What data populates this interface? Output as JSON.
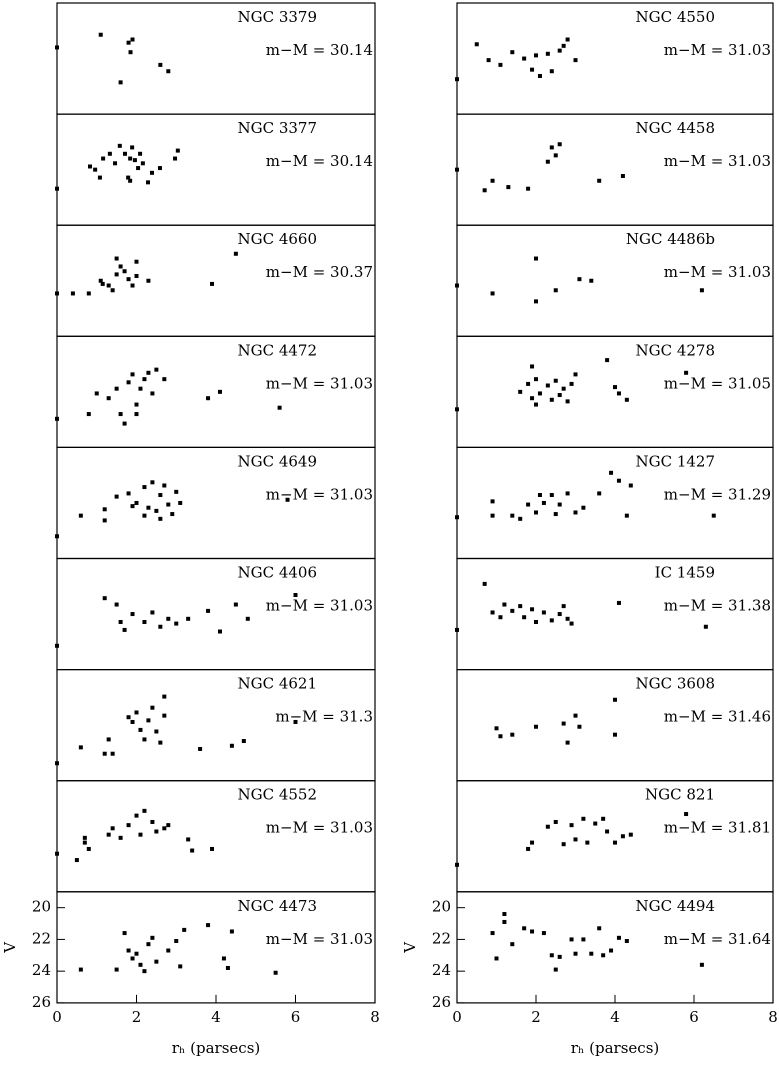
{
  "chart_data": [
    {
      "type": "scatter",
      "title": "NGC 3379",
      "annotation": "m−M = 30.14",
      "color": "#000000",
      "xlim": [
        0,
        8
      ],
      "ylim": [
        26,
        19
      ],
      "x": [
        0,
        1.1,
        1.8,
        1.85,
        1.9,
        1.6,
        2.6,
        2.8
      ],
      "y": [
        21.8,
        21.0,
        21.5,
        22.1,
        21.3,
        24.0,
        22.9,
        23.3
      ]
    },
    {
      "type": "scatter",
      "title": "NGC 3377",
      "annotation": "m−M = 30.14",
      "color": "#000000",
      "xlim": [
        0,
        8
      ],
      "ylim": [
        26,
        19
      ],
      "x": [
        0.83,
        0.96,
        1.08,
        1.16,
        1.33,
        1.46,
        1.58,
        1.71,
        1.79,
        1.84,
        1.89,
        1.96,
        2.04,
        2.09,
        2.16,
        2.29,
        2.39,
        2.59,
        2.97,
        3.04,
        0,
        1.84
      ],
      "y": [
        22.3,
        22.5,
        23.0,
        21.8,
        21.5,
        22.1,
        21.0,
        21.5,
        23.0,
        21.8,
        21.1,
        21.9,
        22.4,
        21.5,
        22.1,
        23.3,
        22.7,
        22.4,
        21.8,
        21.3,
        23.7,
        23.2
      ]
    },
    {
      "type": "scatter",
      "title": "NGC 4660",
      "annotation": "m−M = 30.37",
      "color": "#000000",
      "xlim": [
        0,
        8
      ],
      "ylim": [
        26,
        19
      ],
      "x": [
        0.4,
        0.8,
        1.1,
        1.15,
        1.3,
        1.5,
        1.5,
        1.6,
        1.7,
        1.8,
        1.9,
        2.0,
        2.3,
        2.0,
        3.9,
        4.5,
        0,
        1.4
      ],
      "y": [
        23.3,
        23.3,
        22.5,
        22.7,
        22.8,
        22.1,
        21.1,
        21.6,
        21.9,
        22.4,
        22.8,
        22.2,
        22.5,
        21.3,
        22.7,
        20.8,
        23.3,
        23.1
      ]
    },
    {
      "type": "scatter",
      "title": "NGC 4472",
      "annotation": "m−M = 31.03",
      "color": "#000000",
      "xlim": [
        0,
        8
      ],
      "ylim": [
        26,
        19
      ],
      "x": [
        0.8,
        1.0,
        1.3,
        1.5,
        1.6,
        1.7,
        1.8,
        1.9,
        2.0,
        2.1,
        2.2,
        2.3,
        2.5,
        2.7,
        2.4,
        2.0,
        3.8,
        4.1,
        5.6,
        0
      ],
      "y": [
        23.9,
        22.6,
        22.9,
        22.3,
        23.9,
        24.5,
        21.9,
        21.4,
        23.3,
        22.3,
        21.7,
        21.3,
        21.1,
        21.7,
        22.6,
        23.9,
        22.9,
        22.5,
        23.5,
        24.2
      ]
    },
    {
      "type": "scatter",
      "title": "NGC 4649",
      "annotation": "m−M = 31.03",
      "color": "#000000",
      "xlim": [
        0,
        8
      ],
      "ylim": [
        26,
        19
      ],
      "x": [
        0.6,
        1.2,
        1.2,
        1.5,
        1.8,
        2.0,
        2.2,
        2.3,
        2.4,
        2.5,
        2.6,
        2.7,
        2.8,
        2.9,
        3.0,
        3.1,
        2.2,
        1.9,
        2.6,
        5.8,
        0
      ],
      "y": [
        23.3,
        23.6,
        22.9,
        22.1,
        21.9,
        22.5,
        21.5,
        22.8,
        21.2,
        23.0,
        22.0,
        21.4,
        22.6,
        23.2,
        21.8,
        22.5,
        23.3,
        22.7,
        23.5,
        22.3,
        24.6
      ]
    },
    {
      "type": "scatter",
      "title": "NGC 4406",
      "annotation": "m−M = 31.03",
      "color": "#000000",
      "xlim": [
        0,
        8
      ],
      "ylim": [
        26,
        19
      ],
      "x": [
        1.2,
        1.5,
        1.6,
        1.7,
        1.9,
        2.2,
        2.4,
        2.6,
        2.8,
        3.0,
        3.3,
        3.8,
        4.1,
        4.5,
        4.8,
        6.0,
        0
      ],
      "y": [
        21.5,
        21.9,
        23.0,
        23.5,
        22.5,
        23.0,
        22.4,
        23.3,
        22.8,
        23.1,
        22.8,
        22.3,
        23.6,
        21.9,
        22.8,
        21.3,
        24.5
      ]
    },
    {
      "type": "scatter",
      "title": "NGC 4621",
      "annotation": "m−M = 31.3",
      "color": "#000000",
      "xlim": [
        0,
        8
      ],
      "ylim": [
        26,
        19
      ],
      "x": [
        0.6,
        1.2,
        1.4,
        1.3,
        1.8,
        1.9,
        2.0,
        2.1,
        2.2,
        2.3,
        2.4,
        2.5,
        2.6,
        2.7,
        2.7,
        3.6,
        4.4,
        4.7,
        6.0,
        0
      ],
      "y": [
        23.9,
        24.3,
        24.3,
        23.4,
        22.0,
        22.3,
        21.7,
        22.8,
        23.4,
        22.2,
        21.4,
        22.9,
        23.6,
        20.7,
        21.9,
        24.0,
        23.8,
        23.5,
        22.3,
        24.9
      ]
    },
    {
      "type": "scatter",
      "title": "NGC 4552",
      "annotation": "m−M = 31.03",
      "color": "#000000",
      "xlim": [
        0,
        8
      ],
      "ylim": [
        26,
        19
      ],
      "x": [
        0.5,
        0.7,
        0.8,
        0.7,
        1.3,
        1.4,
        1.6,
        1.8,
        2.0,
        2.1,
        2.2,
        2.4,
        2.5,
        2.7,
        2.8,
        3.3,
        3.4,
        3.9,
        0
      ],
      "y": [
        24.0,
        22.9,
        23.3,
        22.6,
        22.4,
        22.0,
        22.6,
        21.8,
        21.2,
        22.4,
        20.9,
        21.6,
        22.2,
        22.0,
        21.8,
        22.7,
        23.4,
        23.3,
        23.6
      ]
    },
    {
      "type": "scatter",
      "title": "NGC 4473",
      "annotation": "m−M = 31.03",
      "color": "#000000",
      "xlim": [
        0,
        8
      ],
      "ylim": [
        26,
        19
      ],
      "xticks": [
        0,
        2,
        4,
        6,
        8
      ],
      "yticks": [
        20,
        22,
        24,
        26
      ],
      "xlabel": "rₕ (parsecs)",
      "ylabel": "V",
      "x": [
        0.6,
        1.5,
        1.7,
        1.8,
        1.9,
        2.0,
        2.1,
        2.2,
        2.3,
        2.4,
        2.5,
        2.8,
        3.0,
        3.1,
        3.2,
        3.8,
        4.2,
        4.3,
        4.4,
        5.5
      ],
      "y": [
        23.9,
        23.9,
        21.6,
        22.7,
        23.2,
        22.9,
        23.6,
        24.0,
        22.3,
        21.9,
        23.4,
        22.7,
        22.1,
        23.7,
        21.4,
        21.1,
        23.2,
        23.8,
        21.5,
        24.1
      ]
    },
    {
      "type": "scatter",
      "title": "NGC 4550",
      "annotation": "m−M = 31.03",
      "color": "#000000",
      "xlim": [
        0,
        8
      ],
      "ylim": [
        26,
        19
      ],
      "x": [
        0.5,
        0.8,
        1.1,
        1.4,
        1.7,
        1.9,
        2.0,
        2.1,
        2.3,
        2.4,
        2.6,
        2.7,
        2.8,
        3.0,
        0
      ],
      "y": [
        21.6,
        22.6,
        22.9,
        22.1,
        22.5,
        23.2,
        22.3,
        23.6,
        22.2,
        23.3,
        22.0,
        21.7,
        21.3,
        22.6,
        23.8
      ]
    },
    {
      "type": "scatter",
      "title": "NGC 4458",
      "annotation": "m−M = 31.03",
      "color": "#000000",
      "xlim": [
        0,
        8
      ],
      "ylim": [
        26,
        19
      ],
      "x": [
        0.7,
        0.9,
        1.3,
        1.8,
        2.3,
        2.4,
        2.6,
        2.5,
        3.6,
        4.2,
        0
      ],
      "y": [
        23.8,
        23.2,
        23.6,
        23.7,
        22.0,
        21.1,
        20.9,
        21.6,
        23.2,
        22.9,
        22.5
      ]
    },
    {
      "type": "scatter",
      "title": "NGC 4486b",
      "annotation": "m−M = 31.03",
      "color": "#000000",
      "xlim": [
        0,
        8
      ],
      "ylim": [
        26,
        19
      ],
      "x": [
        0.9,
        2.0,
        2.0,
        2.5,
        3.1,
        3.4,
        6.2,
        0
      ],
      "y": [
        23.3,
        21.1,
        23.8,
        23.1,
        22.4,
        22.5,
        23.1,
        22.8
      ]
    },
    {
      "type": "scatter",
      "title": "NGC 4278",
      "annotation": "m−M = 31.05",
      "color": "#000000",
      "xlim": [
        0,
        8
      ],
      "ylim": [
        26,
        19
      ],
      "x": [
        1.6,
        1.8,
        1.9,
        2.0,
        2.0,
        2.1,
        2.3,
        2.4,
        2.5,
        2.6,
        2.7,
        2.8,
        2.9,
        3.0,
        3.8,
        4.0,
        4.1,
        4.3,
        5.8,
        1.9,
        0
      ],
      "y": [
        22.5,
        22.0,
        22.9,
        21.7,
        23.3,
        22.6,
        22.1,
        23.0,
        21.8,
        22.7,
        22.3,
        23.1,
        22.0,
        21.4,
        20.5,
        22.2,
        22.6,
        23.0,
        21.3,
        20.9,
        23.6
      ]
    },
    {
      "type": "scatter",
      "title": "NGC 1427",
      "annotation": "m−M = 31.29",
      "color": "#000000",
      "xlim": [
        0,
        8
      ],
      "ylim": [
        26,
        19
      ],
      "x": [
        0.9,
        0.9,
        1.4,
        1.6,
        1.8,
        2.0,
        2.1,
        2.2,
        2.4,
        2.5,
        2.6,
        2.8,
        3.0,
        3.2,
        3.6,
        3.9,
        4.1,
        4.4,
        4.3,
        6.5,
        0
      ],
      "y": [
        22.4,
        23.3,
        23.3,
        23.5,
        22.6,
        23.1,
        22.0,
        22.5,
        22.0,
        23.2,
        22.6,
        21.9,
        23.1,
        22.8,
        21.9,
        20.6,
        21.1,
        21.4,
        23.3,
        23.3,
        23.4
      ]
    },
    {
      "type": "scatter",
      "title": "IC 1459",
      "annotation": "m−M = 31.38",
      "color": "#000000",
      "xlim": [
        0,
        8
      ],
      "ylim": [
        26,
        19
      ],
      "x": [
        0.7,
        0.9,
        1.1,
        1.2,
        1.4,
        1.6,
        1.7,
        1.9,
        2.0,
        2.2,
        2.4,
        2.6,
        2.7,
        2.8,
        2.9,
        4.1,
        6.3,
        0
      ],
      "y": [
        20.6,
        22.4,
        22.7,
        21.9,
        22.3,
        22.0,
        22.7,
        22.2,
        23.0,
        22.4,
        22.9,
        22.5,
        22.0,
        22.8,
        23.1,
        21.8,
        23.3,
        23.5
      ]
    },
    {
      "type": "scatter",
      "title": "NGC 3608",
      "annotation": "m−M = 31.46",
      "color": "#000000",
      "xlim": [
        0,
        8
      ],
      "ylim": [
        26,
        19
      ],
      "x": [
        1.0,
        1.1,
        1.4,
        2.0,
        2.7,
        2.8,
        3.0,
        3.1,
        4.0,
        4.0
      ],
      "y": [
        22.7,
        23.2,
        23.1,
        22.6,
        22.4,
        23.6,
        21.9,
        22.6,
        20.9,
        23.1
      ]
    },
    {
      "type": "scatter",
      "title": "NGC 821",
      "annotation": "m−M = 31.81",
      "color": "#000000",
      "xlim": [
        0,
        8
      ],
      "ylim": [
        26,
        19
      ],
      "x": [
        1.8,
        1.9,
        2.3,
        2.5,
        2.7,
        2.9,
        3.0,
        3.2,
        3.3,
        3.5,
        3.7,
        3.8,
        4.0,
        4.2,
        4.4,
        5.8,
        0
      ],
      "y": [
        23.3,
        22.9,
        21.9,
        21.6,
        23.0,
        21.8,
        22.7,
        21.4,
        22.9,
        21.7,
        21.4,
        22.2,
        22.9,
        22.5,
        22.4,
        21.1,
        24.3
      ]
    },
    {
      "type": "scatter",
      "title": "NGC 4494",
      "annotation": "m−M = 31.64",
      "color": "#000000",
      "xlim": [
        0,
        8
      ],
      "ylim": [
        26,
        19
      ],
      "xticks": [
        0,
        2,
        4,
        6,
        8
      ],
      "yticks": [
        20,
        22,
        24,
        26
      ],
      "xlabel": "rₕ (parsecs)",
      "ylabel": "V",
      "x": [
        0.9,
        1.0,
        1.2,
        1.2,
        1.4,
        1.7,
        1.9,
        2.2,
        2.4,
        2.5,
        2.6,
        2.9,
        3.0,
        3.2,
        3.4,
        3.6,
        3.7,
        3.9,
        4.1,
        4.3,
        6.2
      ],
      "y": [
        21.6,
        23.2,
        20.4,
        20.9,
        22.3,
        21.3,
        21.5,
        21.6,
        23.0,
        23.9,
        23.1,
        22.0,
        22.9,
        22.0,
        22.9,
        21.3,
        23.0,
        22.7,
        21.9,
        22.1,
        23.6
      ]
    }
  ]
}
